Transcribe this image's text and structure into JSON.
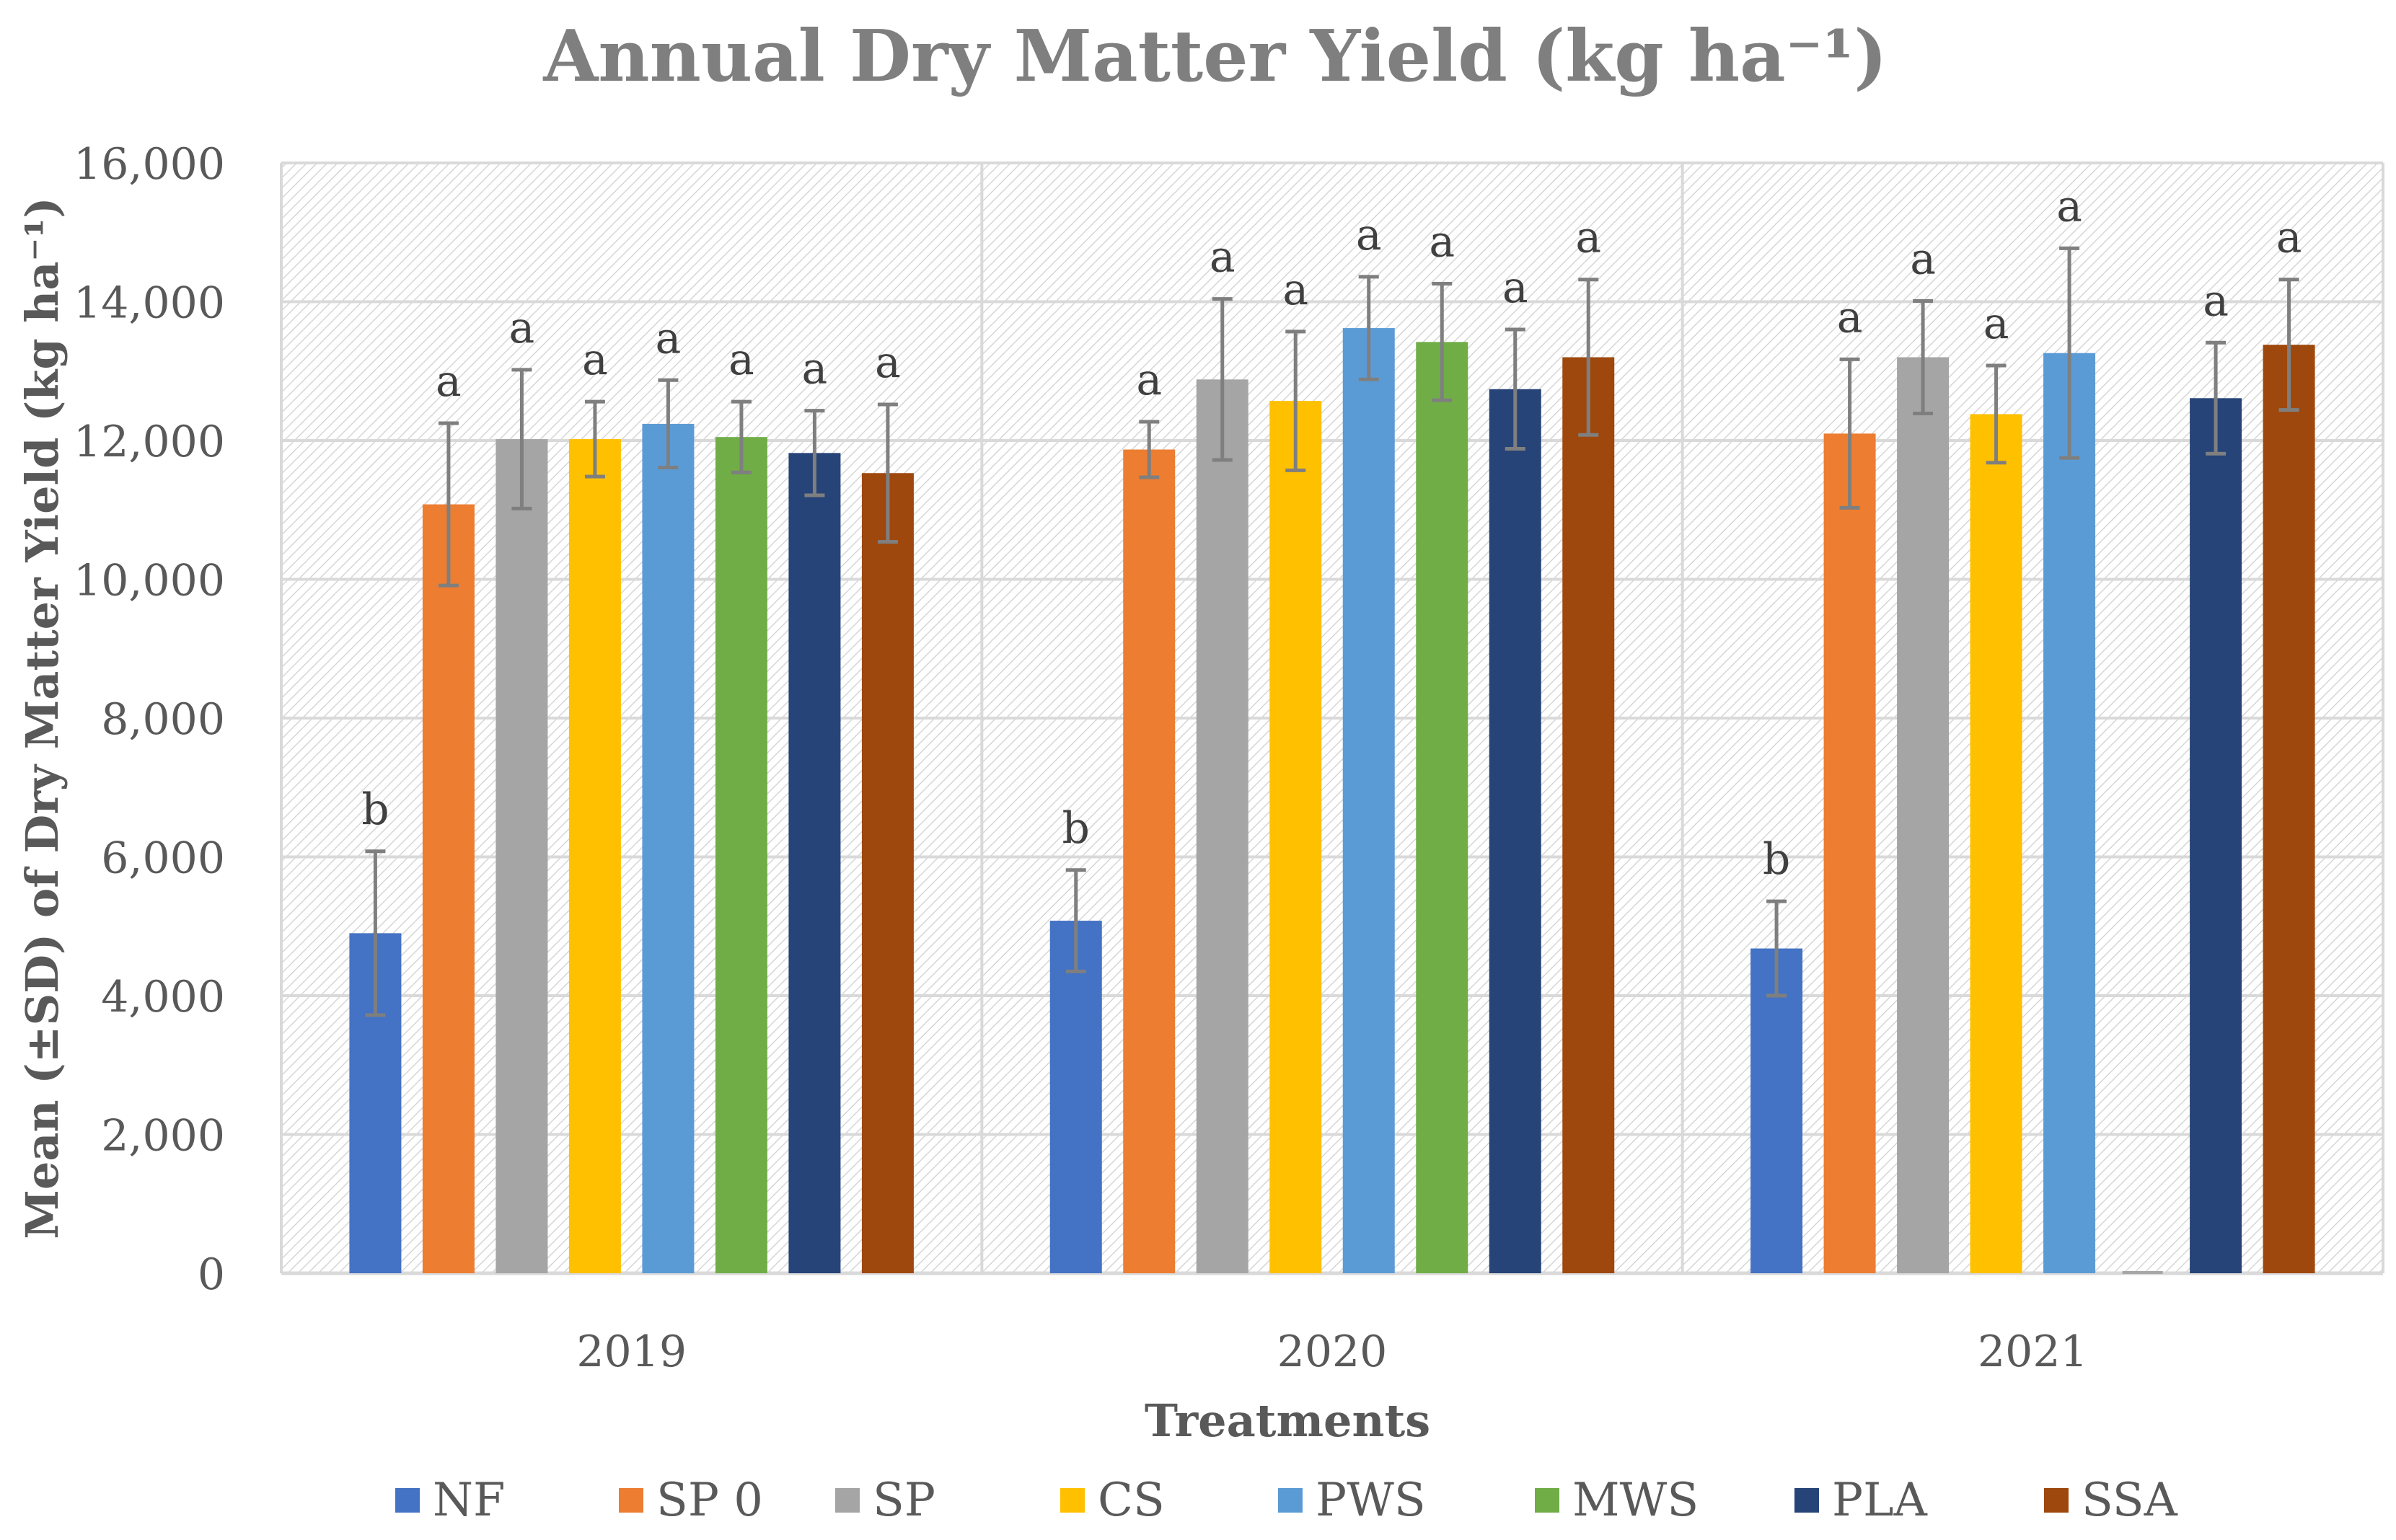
{
  "chart_data": {
    "type": "bar",
    "title": "Annual Dry Matter Yield (kg ha⁻¹)",
    "xlabel": "Treatments",
    "ylabel": "Mean (±SD) of Dry Matter Yield (kg ha⁻¹)",
    "ylim": [
      0,
      16000
    ],
    "yticks": [
      0,
      2000,
      4000,
      6000,
      8000,
      10000,
      12000,
      14000,
      16000
    ],
    "ytick_labels": [
      "0",
      "2,000",
      "4,000",
      "6,000",
      "8,000",
      "10,000",
      "12,000",
      "14,000",
      "16,000"
    ],
    "grid": true,
    "legend_position": "bottom",
    "categories": [
      "2019",
      "2020",
      "2021"
    ],
    "series": [
      {
        "name": "NF",
        "color": "#4472c4",
        "values": [
          4900,
          5080,
          4680
        ],
        "sd": [
          1180,
          730,
          680
        ],
        "letters": [
          "b",
          "b",
          "b"
        ]
      },
      {
        "name": "SP 0",
        "color": "#ed7d31",
        "values": [
          11080,
          11870,
          12100
        ],
        "sd": [
          1170,
          400,
          1070
        ],
        "letters": [
          "a",
          "a",
          "a"
        ]
      },
      {
        "name": "SP",
        "color": "#a5a5a5",
        "values": [
          12020,
          12880,
          13200
        ],
        "sd": [
          1000,
          1160,
          810
        ],
        "letters": [
          "a",
          "a",
          "a"
        ]
      },
      {
        "name": "CS",
        "color": "#ffc000",
        "values": [
          12020,
          12570,
          12380
        ],
        "sd": [
          540,
          1000,
          700
        ],
        "letters": [
          "a",
          "a",
          "a"
        ]
      },
      {
        "name": "PWS",
        "color": "#5b9bd5",
        "values": [
          12240,
          13620,
          13260
        ],
        "sd": [
          630,
          740,
          1510
        ],
        "letters": [
          "a",
          "a",
          "a"
        ]
      },
      {
        "name": "MWS",
        "color": "#70ad47",
        "values": [
          12050,
          13420,
          0
        ],
        "sd": [
          510,
          840,
          0
        ],
        "letters": [
          "a",
          "a",
          ""
        ]
      },
      {
        "name": "PLA",
        "color": "#264478",
        "values": [
          11820,
          12740,
          12610
        ],
        "sd": [
          610,
          860,
          800
        ],
        "letters": [
          "a",
          "a",
          "a"
        ]
      },
      {
        "name": "SSA",
        "color": "#9e480e",
        "values": [
          11530,
          13200,
          13380
        ],
        "sd": [
          990,
          1120,
          940
        ],
        "letters": [
          "a",
          "a",
          "a"
        ]
      }
    ]
  }
}
